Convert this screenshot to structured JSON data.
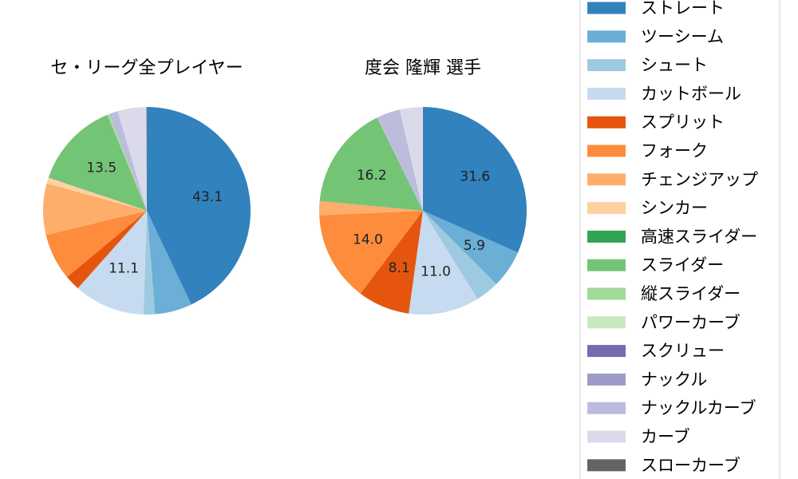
{
  "chart_data": [
    {
      "type": "pie",
      "title": "セ・リーグ全プレイヤー",
      "slices": [
        {
          "name": "ストレート",
          "value": 43.1,
          "label": "43.1"
        },
        {
          "name": "ツーシーム",
          "value": 5.8,
          "label": ""
        },
        {
          "name": "シュート",
          "value": 1.8,
          "label": ""
        },
        {
          "name": "カットボール",
          "value": 11.1,
          "label": "11.1"
        },
        {
          "name": "スプリット",
          "value": 2.4,
          "label": ""
        },
        {
          "name": "フォーク",
          "value": 7.3,
          "label": ""
        },
        {
          "name": "チェンジアップ",
          "value": 8.0,
          "label": ""
        },
        {
          "name": "シンカー",
          "value": 1.0,
          "label": ""
        },
        {
          "name": "高速スライダー",
          "value": 0.1,
          "label": ""
        },
        {
          "name": "スライダー",
          "value": 13.5,
          "label": "13.5"
        },
        {
          "name": "縦スライダー",
          "value": 0.3,
          "label": ""
        },
        {
          "name": "パワーカーブ",
          "value": 0.1,
          "label": ""
        },
        {
          "name": "スクリュー",
          "value": 0.05,
          "label": ""
        },
        {
          "name": "ナックル",
          "value": 0.05,
          "label": ""
        },
        {
          "name": "ナックルカーブ",
          "value": 1.2,
          "label": ""
        },
        {
          "name": "カーブ",
          "value": 4.5,
          "label": ""
        },
        {
          "name": "スローカーブ",
          "value": 0.05,
          "label": ""
        }
      ]
    },
    {
      "type": "pie",
      "title": "度会 隆輝  選手",
      "slices": [
        {
          "name": "ストレート",
          "value": 31.6,
          "label": "31.6"
        },
        {
          "name": "ツーシーム",
          "value": 5.9,
          "label": "5.9"
        },
        {
          "name": "シュート",
          "value": 3.7,
          "label": ""
        },
        {
          "name": "カットボール",
          "value": 11.0,
          "label": "11.0"
        },
        {
          "name": "スプリット",
          "value": 8.1,
          "label": "8.1"
        },
        {
          "name": "フォーク",
          "value": 14.0,
          "label": "14.0"
        },
        {
          "name": "チェンジアップ",
          "value": 2.2,
          "label": ""
        },
        {
          "name": "スライダー",
          "value": 16.2,
          "label": "16.2"
        },
        {
          "name": "ナックルカーブ",
          "value": 3.7,
          "label": ""
        },
        {
          "name": "カーブ",
          "value": 3.6,
          "label": ""
        }
      ]
    }
  ],
  "legend": {
    "placement": "right",
    "items": [
      {
        "name": "ストレート",
        "color": "#3182bd"
      },
      {
        "name": "ツーシーム",
        "color": "#6baed6"
      },
      {
        "name": "シュート",
        "color": "#9ecae1"
      },
      {
        "name": "カットボール",
        "color": "#c6dbef"
      },
      {
        "name": "スプリット",
        "color": "#e6550d"
      },
      {
        "name": "フォーク",
        "color": "#fd8d3c"
      },
      {
        "name": "チェンジアップ",
        "color": "#fdae6b"
      },
      {
        "name": "シンカー",
        "color": "#fdd0a2"
      },
      {
        "name": "高速スライダー",
        "color": "#31a354"
      },
      {
        "name": "スライダー",
        "color": "#74c476"
      },
      {
        "name": "縦スライダー",
        "color": "#a1d99b"
      },
      {
        "name": "パワーカーブ",
        "color": "#c7e9c0"
      },
      {
        "name": "スクリュー",
        "color": "#756bb1"
      },
      {
        "name": "ナックル",
        "color": "#9e9ac8"
      },
      {
        "name": "ナックルカーブ",
        "color": "#bcbddc"
      },
      {
        "name": "カーブ",
        "color": "#dadaeb"
      },
      {
        "name": "スローカーブ",
        "color": "#636363"
      }
    ]
  }
}
